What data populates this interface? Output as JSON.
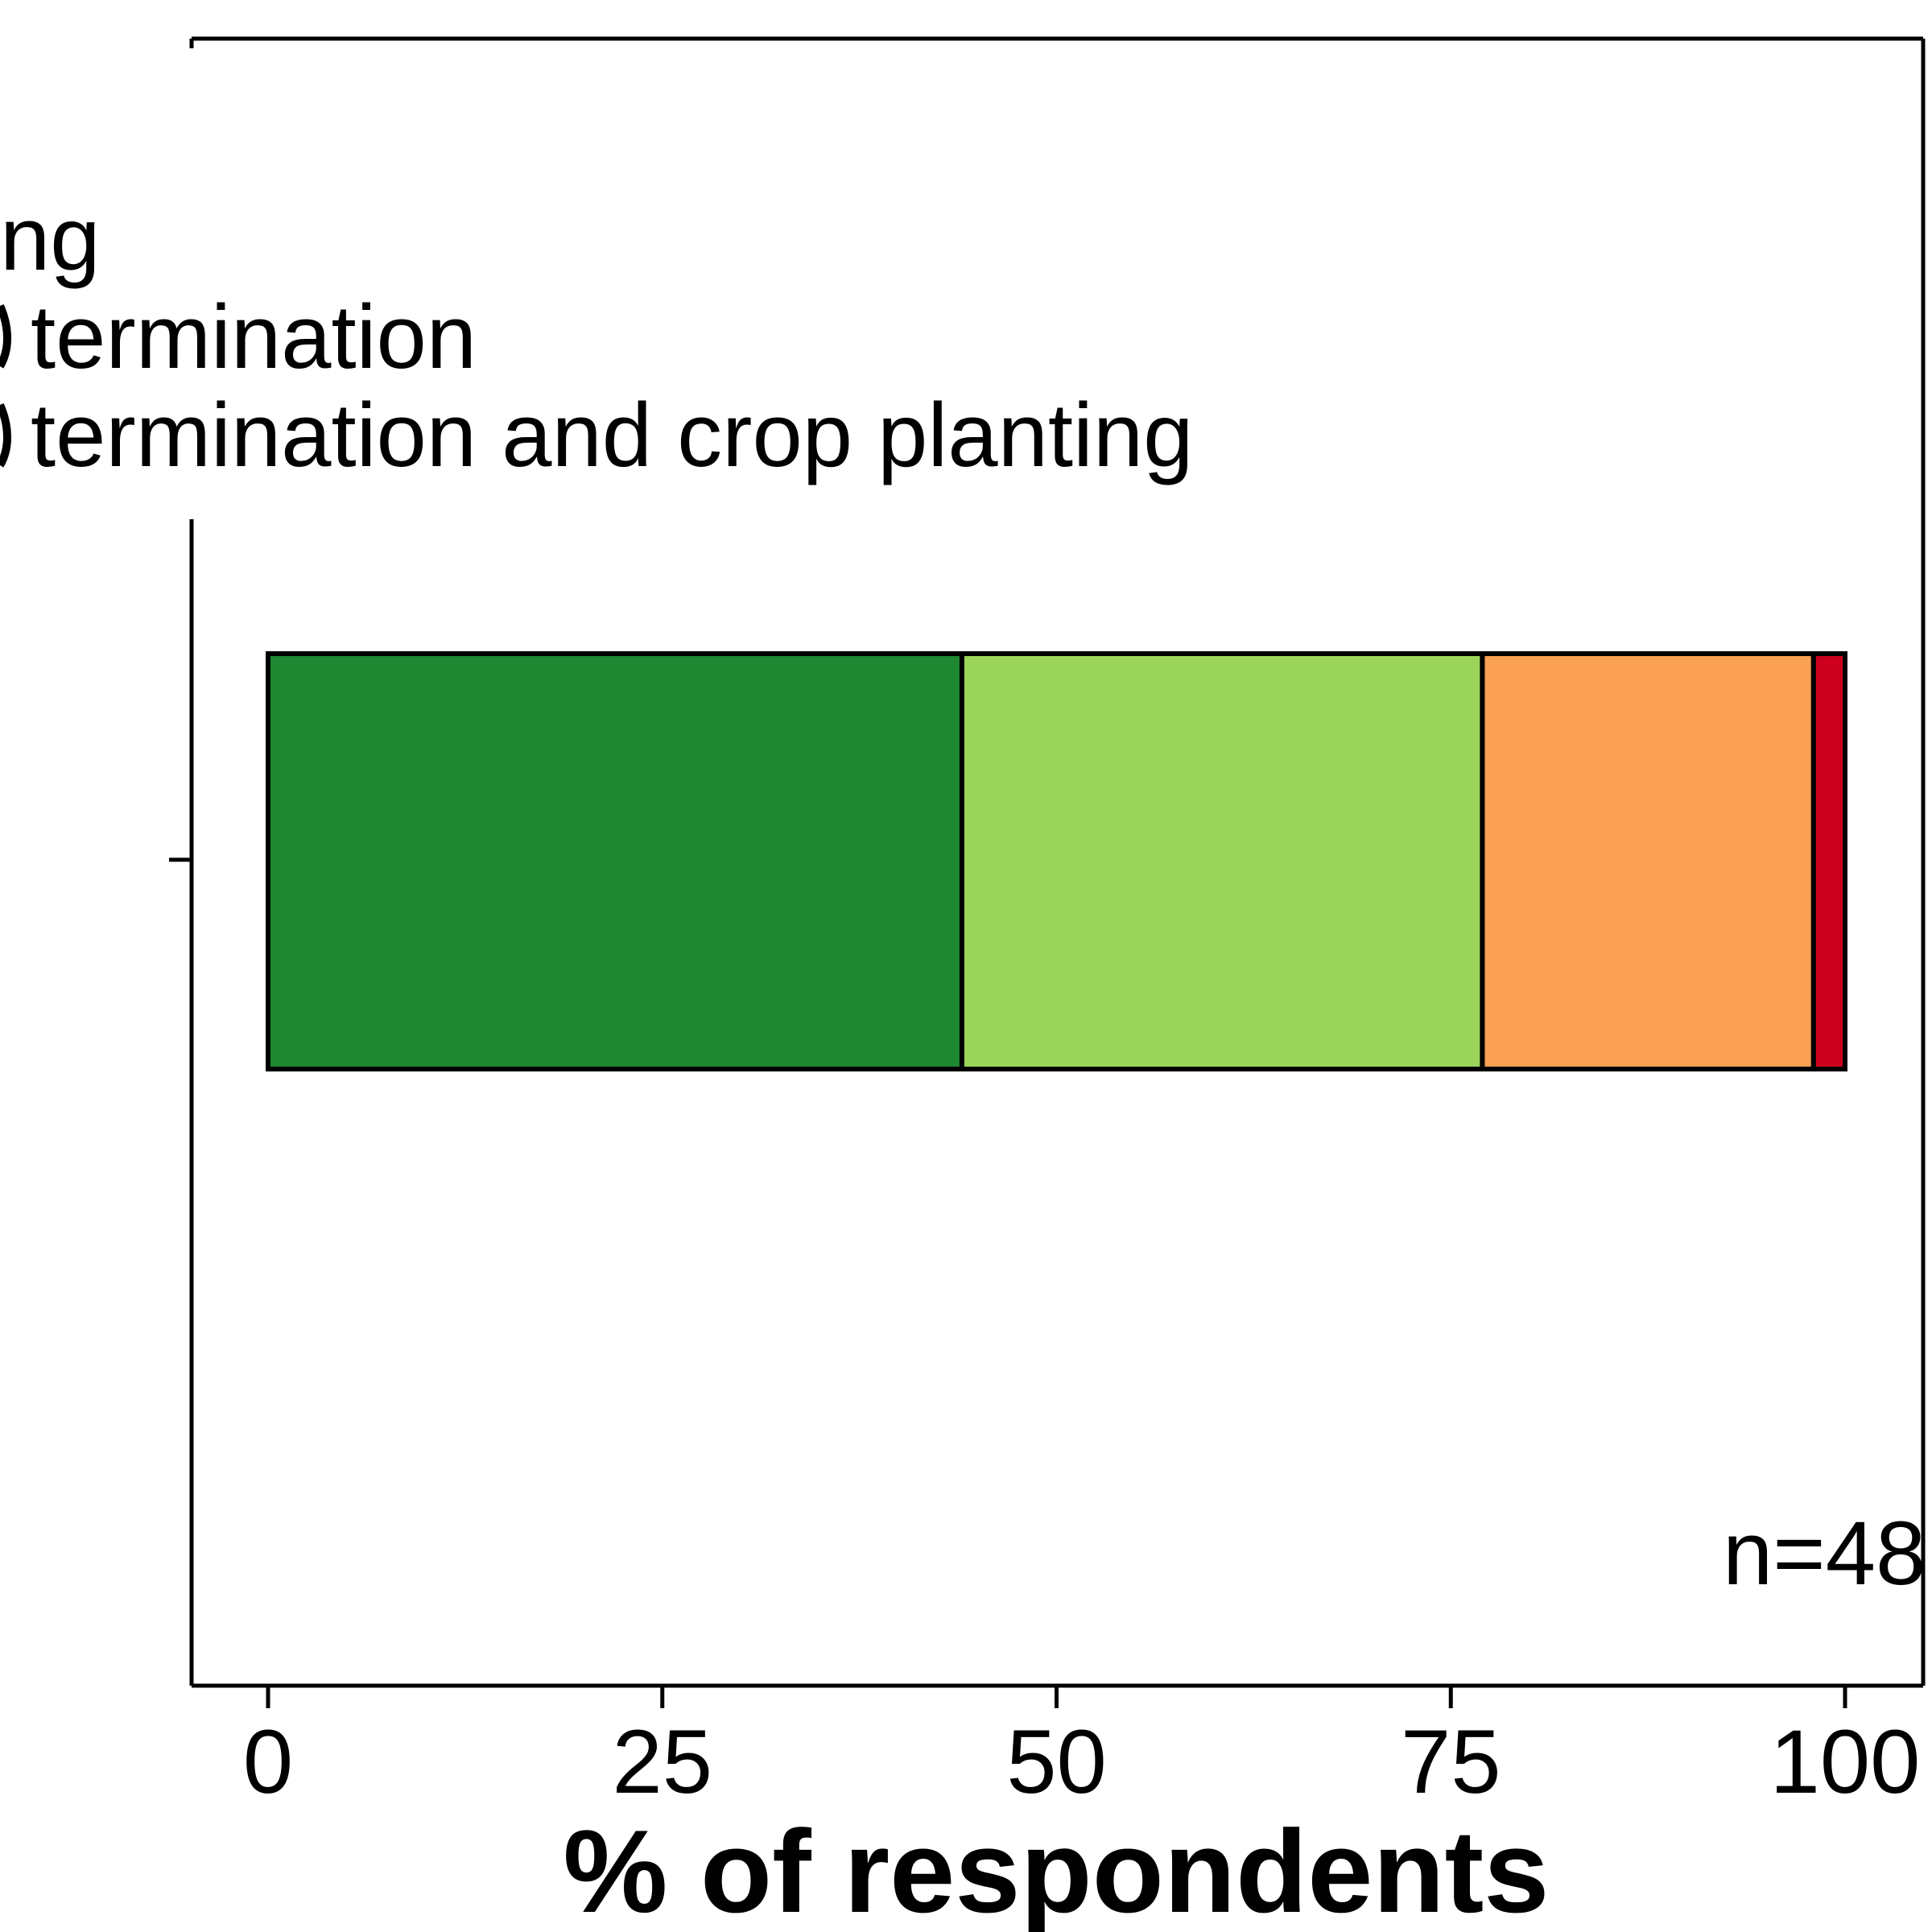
{
  "chart_data": {
    "type": "bar",
    "orientation": "horizontal",
    "stacked": true,
    "categories": [
      ""
    ],
    "series": [
      {
        "value": 44,
        "color": "#1e8832"
      },
      {
        "value": 33,
        "color": "#9ad55a"
      },
      {
        "value": 21,
        "color": "#f9a052"
      },
      {
        "value": 2,
        "color": "#cc001e"
      }
    ],
    "xlabel": "% of respondents",
    "xlim": [
      -5,
      105
    ],
    "xticks": [
      0,
      25,
      50,
      75,
      100
    ],
    "xtick_labels": [
      "0",
      "25",
      "50",
      "75",
      "100"
    ],
    "legend": {
      "placement": "top-left, clipped",
      "entries": [
        "ng",
        "termination",
        "termination and crop planting"
      ]
    },
    "annotations": [
      "n=48"
    ],
    "grid": false
  }
}
